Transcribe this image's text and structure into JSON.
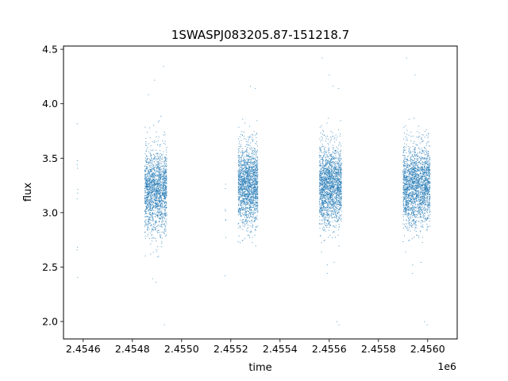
{
  "chart_data": {
    "type": "scatter",
    "title": "1SWASPJ083205.87-151218.7",
    "xlabel": "time",
    "ylabel": "flux",
    "x_offset_label": "1e6",
    "xlim": [
      2454520,
      2456120
    ],
    "ylim": [
      1.84,
      4.53
    ],
    "x_ticks": [
      2454600,
      2454800,
      2455000,
      2455200,
      2455400,
      2455600,
      2455800,
      2456000
    ],
    "x_tick_labels": [
      "2.4546",
      "2.4548",
      "2.4550",
      "2.4552",
      "2.4554",
      "2.4556",
      "2.4558",
      "2.4560"
    ],
    "y_ticks": [
      2.0,
      2.5,
      3.0,
      3.5,
      4.0,
      4.5
    ],
    "y_tick_labels": [
      "2.0",
      "2.5",
      "3.0",
      "3.5",
      "4.0",
      "4.5"
    ],
    "grid": false,
    "legend": "none",
    "marker_color": "#1f77b4",
    "series": [
      {
        "clusters": [
          {
            "x_range": [
              2454575,
              2454578
            ],
            "y_center": 3.2,
            "y_spread": 0.5,
            "count": 10
          },
          {
            "x_range": [
              2454850,
              2454940
            ],
            "y_center": 3.2,
            "y_spread": 0.18,
            "count": 1700
          },
          {
            "x_range": [
              2455175,
              2455180
            ],
            "y_center": 3.0,
            "y_spread": 0.3,
            "count": 8
          },
          {
            "x_range": [
              2455230,
              2455310
            ],
            "y_center": 3.25,
            "y_spread": 0.18,
            "count": 1700
          },
          {
            "x_range": [
              2455560,
              2455650
            ],
            "y_center": 3.25,
            "y_spread": 0.18,
            "count": 1900
          },
          {
            "x_range": [
              2455900,
              2456010
            ],
            "y_center": 3.25,
            "y_spread": 0.18,
            "count": 2100
          }
        ],
        "min_y": 1.97,
        "max_y": 4.42
      }
    ]
  }
}
